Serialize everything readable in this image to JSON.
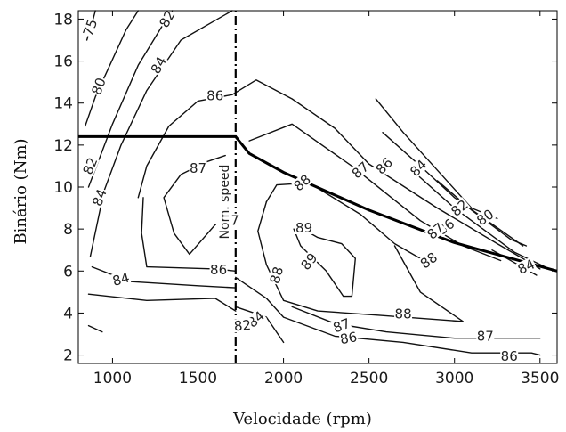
{
  "chart_data": {
    "type": "line",
    "subtype": "contour",
    "xlabel": "Velocidade (rpm)",
    "ylabel": "Binário (Nm)",
    "xlim": [
      800,
      3600
    ],
    "ylim": [
      1.6,
      18.4
    ],
    "xticks": [
      "1000",
      "1500",
      "2000",
      "2500",
      "3000",
      "3500"
    ],
    "yticks": [
      "2",
      "4",
      "6",
      "8",
      "10",
      "12",
      "14",
      "16",
      "18"
    ],
    "xtick_values": [
      1000,
      1500,
      2000,
      2500,
      3000,
      3500
    ],
    "ytick_values": [
      2,
      4,
      6,
      8,
      10,
      12,
      14,
      16,
      18
    ],
    "grid": false,
    "annotation": {
      "text": "Nom. speed",
      "x": 1720
    },
    "series": [
      {
        "role": "torque-envelope",
        "points": [
          [
            800,
            12.4
          ],
          [
            1720,
            12.4
          ],
          [
            1800,
            11.6
          ],
          [
            2000,
            10.7
          ],
          [
            2500,
            8.9
          ],
          [
            3000,
            7.35
          ],
          [
            3600,
            6.0
          ]
        ]
      },
      {
        "role": "nominal-speed-line",
        "points": [
          [
            1720,
            1.6
          ],
          [
            1720,
            18.4
          ]
        ]
      }
    ],
    "contours": [
      {
        "level": "75",
        "points": [
          [
            850,
            17.0
          ],
          [
            880,
            17.8
          ],
          [
            900,
            18.4
          ]
        ],
        "labels": [
          [
            870,
            17.6,
            -70
          ]
        ]
      },
      {
        "level": "80",
        "points": [
          [
            840,
            12.9
          ],
          [
            900,
            14.3
          ],
          [
            990,
            15.9
          ],
          [
            1080,
            17.5
          ],
          [
            1150,
            18.4
          ]
        ],
        "labels": [
          [
            920,
            14.8,
            -70
          ]
        ]
      },
      {
        "level": "82",
        "points": [
          [
            860,
            10.0
          ],
          [
            1000,
            13.0
          ],
          [
            1150,
            15.8
          ],
          [
            1300,
            17.8
          ],
          [
            1350,
            18.4
          ]
        ],
        "labels": [
          [
            1320,
            18.0,
            -60
          ],
          [
            870,
            11.0,
            -68
          ]
        ]
      },
      {
        "level": "84",
        "points": [
          [
            870,
            6.7
          ],
          [
            950,
            9.8
          ],
          [
            1050,
            12.0
          ],
          [
            1200,
            14.6
          ],
          [
            1400,
            17.0
          ],
          [
            1700,
            18.4
          ]
        ],
        "labels": [
          [
            1270,
            15.8,
            -60
          ],
          [
            925,
            9.5,
            -70
          ]
        ]
      },
      {
        "level": "86",
        "points": [
          [
            1150,
            9.5
          ],
          [
            1200,
            11.0
          ],
          [
            1330,
            12.9
          ],
          [
            1500,
            14.1
          ],
          [
            1700,
            14.4
          ],
          [
            1840,
            15.1
          ],
          [
            2050,
            14.2
          ],
          [
            2300,
            12.8
          ],
          [
            2500,
            11.1
          ],
          [
            2900,
            9.0
          ],
          [
            3250,
            7.3
          ],
          [
            3420,
            6.5
          ],
          [
            3500,
            6.1
          ]
        ],
        "labels": [
          [
            1600,
            14.35,
            0
          ],
          [
            2590,
            11.0,
            -45
          ],
          [
            2950,
            8.1,
            -35
          ]
        ]
      },
      {
        "level": "86",
        "points": [
          [
            1180,
            9.5
          ],
          [
            1170,
            7.8
          ],
          [
            1200,
            6.2
          ],
          [
            1600,
            6.1
          ],
          [
            1720,
            6.0
          ]
        ],
        "labels": [
          [
            1620,
            6.05,
            0
          ]
        ]
      },
      {
        "level": "87",
        "points": [
          [
            1660,
            11.5
          ],
          [
            1550,
            11.2
          ],
          [
            1400,
            10.6
          ],
          [
            1300,
            9.5
          ],
          [
            1360,
            7.8
          ],
          [
            1450,
            6.8
          ],
          [
            1600,
            8.2
          ],
          [
            1720,
            8.4
          ]
        ],
        "labels": [
          [
            1500,
            10.9,
            0
          ],
          [
            1690,
            8.4,
            0
          ]
        ]
      },
      {
        "level": "87",
        "points": [
          [
            1800,
            12.2
          ],
          [
            2050,
            13.0
          ],
          [
            2400,
            11.0
          ],
          [
            2800,
            8.4
          ],
          [
            3050,
            7.2
          ],
          [
            3270,
            6.5
          ]
        ],
        "labels": [
          [
            2450,
            10.8,
            -40
          ],
          [
            2890,
            7.9,
            -40
          ]
        ]
      },
      {
        "level": "88",
        "points": [
          [
            1900,
            9.3
          ],
          [
            1960,
            10.1
          ],
          [
            2150,
            10.2
          ],
          [
            2450,
            8.7
          ],
          [
            2650,
            7.3
          ],
          [
            2800,
            6.6
          ]
        ],
        "labels": [
          [
            2110,
            10.2,
            -40
          ],
          [
            2850,
            6.5,
            -35
          ]
        ]
      },
      {
        "level": "88",
        "points": [
          [
            1900,
            9.3
          ],
          [
            1850,
            7.9
          ],
          [
            1900,
            6.3
          ],
          [
            2000,
            4.6
          ],
          [
            2200,
            4.1
          ],
          [
            2550,
            3.9
          ],
          [
            3050,
            3.6
          ],
          [
            2800,
            5.0
          ],
          [
            2650,
            7.2
          ]
        ],
        "labels": [
          [
            1960,
            5.8,
            -75
          ],
          [
            2700,
            3.95,
            0
          ]
        ]
      },
      {
        "level": "89",
        "points": [
          [
            2070,
            8.2
          ],
          [
            2200,
            7.6
          ],
          [
            2340,
            7.3
          ],
          [
            2420,
            6.6
          ],
          [
            2400,
            4.8
          ],
          [
            2350,
            4.8
          ],
          [
            2250,
            6.0
          ],
          [
            2100,
            7.2
          ],
          [
            2060,
            8.0
          ]
        ],
        "labels": [
          [
            2120,
            8.05,
            0
          ],
          [
            2150,
            6.45,
            -50
          ]
        ]
      },
      {
        "level": "87",
        "points": [
          [
            2050,
            4.3
          ],
          [
            2300,
            3.5
          ],
          [
            2600,
            3.1
          ],
          [
            3000,
            2.8
          ],
          [
            3350,
            2.8
          ],
          [
            3500,
            2.8
          ]
        ],
        "labels": [
          [
            2340,
            3.4,
            -20
          ],
          [
            3180,
            2.9,
            0
          ]
        ]
      },
      {
        "level": "86",
        "points": [
          [
            1720,
            5.7
          ],
          [
            1900,
            4.7
          ],
          [
            2000,
            3.8
          ],
          [
            2300,
            2.9
          ],
          [
            2700,
            2.6
          ],
          [
            3100,
            2.1
          ],
          [
            3450,
            2.1
          ],
          [
            3500,
            2.0
          ]
        ],
        "labels": [
          [
            2380,
            2.8,
            -10
          ],
          [
            3320,
            1.95,
            0
          ]
        ]
      },
      {
        "level": "84",
        "points": [
          [
            880,
            6.2
          ],
          [
            1100,
            5.5
          ],
          [
            1500,
            5.3
          ],
          [
            1720,
            5.2
          ]
        ],
        "labels": [
          [
            1050,
            5.6,
            -15
          ]
        ]
      },
      {
        "level": "84",
        "points": [
          [
            1720,
            4.3
          ],
          [
            1900,
            3.8
          ],
          [
            2000,
            2.6
          ]
        ],
        "labels": [
          [
            1840,
            3.7,
            -40
          ]
        ]
      },
      {
        "level": "82",
        "points": [
          [
            860,
            4.9
          ],
          [
            1200,
            4.6
          ],
          [
            1600,
            4.7
          ],
          [
            1720,
            4.1
          ]
        ],
        "labels": [
          [
            1760,
            3.4,
            -5
          ]
        ]
      },
      {
        "level": "82",
        "points": [
          [
            1720,
            3.5
          ],
          [
            1780,
            3.4
          ]
        ],
        "labels": []
      },
      {
        "level": "",
        "points": [
          [
            860,
            3.4
          ],
          [
            940,
            3.1
          ]
        ],
        "labels": []
      },
      {
        "level": "",
        "points": [
          [
            2540,
            14.2
          ],
          [
            2700,
            12.6
          ],
          [
            3100,
            9.0
          ],
          [
            3250,
            8.5
          ]
        ],
        "labels": []
      },
      {
        "level": "84",
        "points": [
          [
            2580,
            12.6
          ],
          [
            2800,
            11.0
          ],
          [
            3000,
            9.5
          ],
          [
            3400,
            7.2
          ]
        ],
        "labels": [
          [
            2790,
            10.9,
            -45
          ]
        ]
      },
      {
        "level": "82",
        "points": [
          [
            2780,
            10.6
          ],
          [
            3000,
            9.0
          ],
          [
            3350,
            6.9
          ],
          [
            3530,
            6.2
          ]
        ],
        "labels": [
          [
            3030,
            9.0,
            -40
          ]
        ]
      },
      {
        "level": "80",
        "points": [
          [
            2900,
            10.3
          ],
          [
            3100,
            8.9
          ],
          [
            3330,
            7.5
          ],
          [
            3420,
            7.2
          ]
        ],
        "labels": [
          [
            3180,
            8.55,
            -35
          ]
        ]
      },
      {
        "level": "84",
        "points": [
          [
            3220,
            7.0
          ],
          [
            3480,
            5.8
          ]
        ],
        "labels": [
          [
            3420,
            6.2,
            -25
          ]
        ]
      }
    ]
  }
}
